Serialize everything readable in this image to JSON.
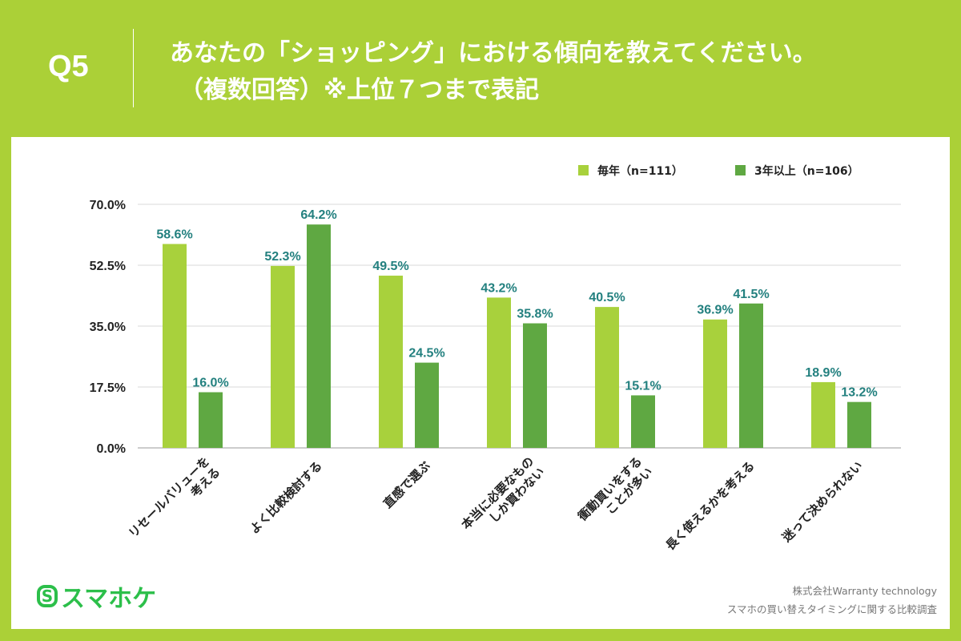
{
  "header": {
    "q": "Q5",
    "title_line1": "あなたの「ショッピング」における傾向を教えてください。",
    "title_line2": "（複数回答）※上位７つまで表記"
  },
  "chart_data": {
    "type": "bar",
    "categories": [
      "リセールバリューを\n考える",
      "よく比較検討する",
      "直感で選ぶ",
      "本当に必要なもの\nしか買わない",
      "衝動買いをする\nことが多い",
      "長く使えるかを考える",
      "迷って決められない"
    ],
    "series": [
      {
        "name": "毎年（n=111）",
        "color": "#a8d13c",
        "values": [
          58.6,
          52.3,
          49.5,
          43.2,
          40.5,
          36.9,
          18.9
        ],
        "labels": [
          "58.6%",
          "52.3%",
          "49.5%",
          "43.2%",
          "40.5%",
          "36.9%",
          "18.9%"
        ]
      },
      {
        "name": "3年以上（n=106）",
        "color": "#5fa842",
        "values": [
          16.0,
          64.2,
          24.5,
          35.8,
          15.1,
          41.5,
          13.2
        ],
        "labels": [
          "16.0%",
          "64.2%",
          "24.5%",
          "35.8%",
          "15.1%",
          "41.5%",
          "13.2%"
        ]
      }
    ],
    "yticks": [
      "0.0%",
      "17.5%",
      "35.0%",
      "52.5%",
      "70.0%"
    ],
    "ylim": [
      0,
      70
    ],
    "grid": true,
    "legend": "top-right",
    "label_color": "#23807f"
  },
  "footer": {
    "logo": "スマホケ",
    "logo_mark": "S",
    "company": "株式会社Warranty technology",
    "survey": "スマホの買い替えタイミングに関する比較調査"
  }
}
